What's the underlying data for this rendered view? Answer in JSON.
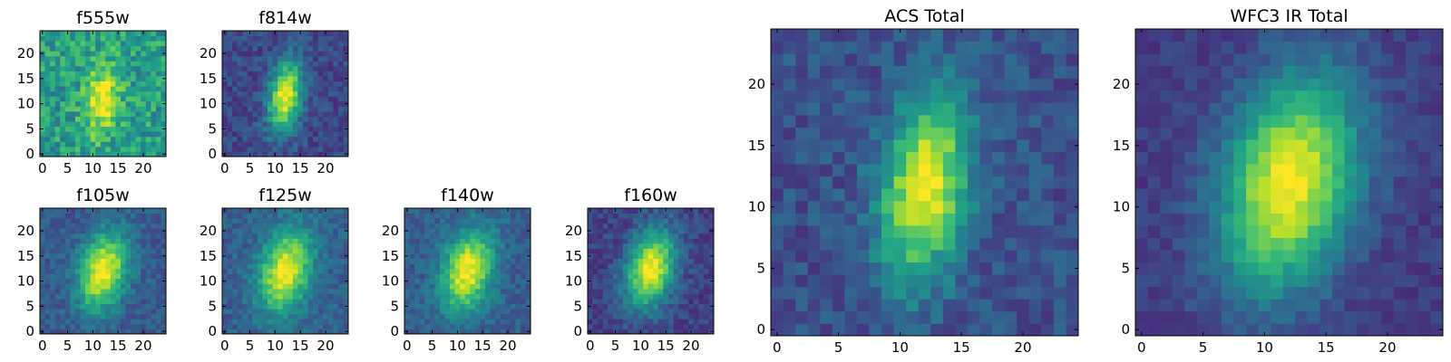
{
  "chart_data": {
    "type": "heatmap",
    "colormap": "viridis",
    "grid_size": 25,
    "panels": [
      {
        "id": "f555w",
        "title": "f555w",
        "xlim": [
          0,
          24
        ],
        "ylim": [
          0,
          24
        ],
        "xticks": [
          0,
          5,
          10,
          15,
          20
        ],
        "yticks": [
          0,
          5,
          10,
          15,
          20
        ],
        "source": {
          "cx": 12.0,
          "cy": 11.0,
          "sx": 2.4,
          "sy": 5.0,
          "rot": 0.15,
          "bg": 0.55,
          "amp": 0.45,
          "noise": 0.35,
          "seed": 11
        }
      },
      {
        "id": "f814w",
        "title": "f814w",
        "xlim": [
          0,
          24
        ],
        "ylim": [
          0,
          24
        ],
        "xticks": [
          0,
          5,
          10,
          15,
          20
        ],
        "yticks": [
          0,
          5,
          10,
          15,
          20
        ],
        "source": {
          "cx": 12.0,
          "cy": 11.5,
          "sx": 2.2,
          "sy": 5.0,
          "rot": 0.15,
          "bg": 0.22,
          "amp": 0.78,
          "noise": 0.2,
          "seed": 23
        }
      },
      {
        "id": "f105w",
        "title": "f105w",
        "xlim": [
          0,
          24
        ],
        "ylim": [
          0,
          24
        ],
        "xticks": [
          0,
          5,
          10,
          15,
          20
        ],
        "yticks": [
          0,
          5,
          10,
          15,
          20
        ],
        "source": {
          "cx": 12.0,
          "cy": 12.0,
          "sx": 3.2,
          "sy": 5.5,
          "rot": 0.25,
          "bg": 0.28,
          "amp": 0.72,
          "noise": 0.18,
          "seed": 37
        }
      },
      {
        "id": "f125w",
        "title": "f125w",
        "xlim": [
          0,
          24
        ],
        "ylim": [
          0,
          24
        ],
        "xticks": [
          0,
          5,
          10,
          15,
          20
        ],
        "yticks": [
          0,
          5,
          10,
          15,
          20
        ],
        "source": {
          "cx": 12.0,
          "cy": 12.0,
          "sx": 3.4,
          "sy": 5.8,
          "rot": 0.25,
          "bg": 0.3,
          "amp": 0.7,
          "noise": 0.18,
          "seed": 41
        }
      },
      {
        "id": "f140w",
        "title": "f140w",
        "xlim": [
          0,
          24
        ],
        "ylim": [
          0,
          24
        ],
        "xticks": [
          0,
          5,
          10,
          15,
          20
        ],
        "yticks": [
          0,
          5,
          10,
          15,
          20
        ],
        "source": {
          "cx": 12.0,
          "cy": 12.0,
          "sx": 3.3,
          "sy": 5.6,
          "rot": 0.25,
          "bg": 0.3,
          "amp": 0.7,
          "noise": 0.18,
          "seed": 53
        }
      },
      {
        "id": "f160w",
        "title": "f160w",
        "xlim": [
          0,
          24
        ],
        "ylim": [
          0,
          24
        ],
        "xticks": [
          0,
          5,
          10,
          15,
          20
        ],
        "yticks": [
          0,
          5,
          10,
          15,
          20
        ],
        "source": {
          "cx": 12.0,
          "cy": 12.5,
          "sx": 3.2,
          "sy": 5.4,
          "rot": 0.25,
          "bg": 0.2,
          "amp": 0.8,
          "noise": 0.18,
          "seed": 67
        }
      },
      {
        "id": "acs-total",
        "title": "ACS Total",
        "xlim": [
          0,
          24
        ],
        "ylim": [
          0,
          24
        ],
        "xticks": [
          0,
          5,
          10,
          15,
          20
        ],
        "yticks": [
          0,
          5,
          10,
          15,
          20
        ],
        "source": {
          "cx": 12.0,
          "cy": 11.5,
          "sx": 2.4,
          "sy": 5.2,
          "rot": 0.15,
          "bg": 0.25,
          "amp": 0.75,
          "noise": 0.2,
          "seed": 79
        }
      },
      {
        "id": "wfc3-ir-total",
        "title": "WFC3 IR Total",
        "xlim": [
          0,
          24
        ],
        "ylim": [
          0,
          24
        ],
        "xticks": [
          0,
          5,
          10,
          15,
          20
        ],
        "yticks": [
          0,
          5,
          10,
          15,
          20
        ],
        "source": {
          "cx": 12.0,
          "cy": 12.0,
          "sx": 3.6,
          "sy": 6.2,
          "rot": 0.25,
          "bg": 0.18,
          "amp": 0.82,
          "noise": 0.12,
          "seed": 97
        }
      }
    ]
  }
}
